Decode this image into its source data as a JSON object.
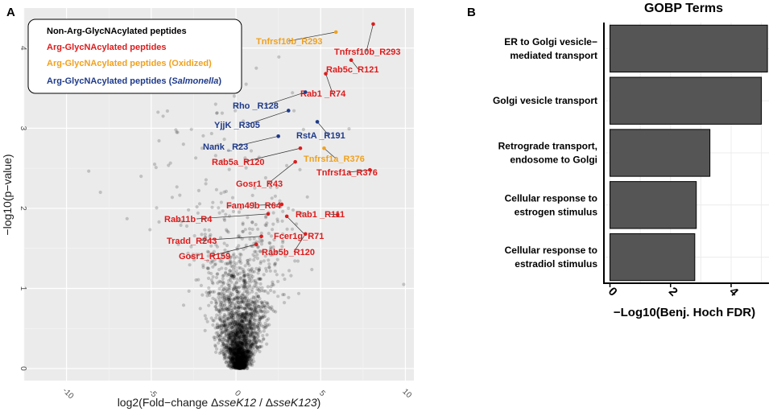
{
  "chart_data": [
    {
      "panel": "A",
      "type": "scatter",
      "xlabel_prefix": "log2(Fold−change Δ",
      "xlabel_italic_1": "sseK12",
      "xlabel_sep": " / Δ",
      "xlabel_italic_2": "sseK123",
      "xlabel_suffix": ")",
      "ylabel": "−log10(p−value)",
      "xlim": [
        -12.5,
        10.5
      ],
      "ylim": [
        -0.15,
        4.5
      ],
      "xticks": [
        -10,
        -5,
        0,
        5,
        10
      ],
      "yticks": [
        0,
        1,
        2,
        3,
        4
      ],
      "grid": true,
      "legend": [
        {
          "label": "Non-Arg-GlycNAcylated peptides",
          "color": "#000000"
        },
        {
          "label": "Arg-GlycNAcylated peptides",
          "color": "#dd1c1c"
        },
        {
          "label": "Arg-GlycNAcylated peptides (Oxidized)",
          "color": "#f0a11e"
        },
        {
          "label_prefix": "Arg-GlycNAcylated peptides (",
          "label_italic": "Salmonella",
          "label_suffix": ")",
          "color": "#1e3a8a"
        }
      ],
      "highlighted": [
        {
          "label": "Tnfrsf10b_R293",
          "x": 8.1,
          "y": 4.3,
          "group": "red"
        },
        {
          "label": "Tnfrsf10b_R293",
          "x": 5.9,
          "y": 4.2,
          "group": "orange"
        },
        {
          "label": "Rab5c_R121",
          "x": 6.8,
          "y": 3.85,
          "group": "red"
        },
        {
          "label": "Rab1 _R74",
          "x": 5.3,
          "y": 3.68,
          "group": "red"
        },
        {
          "label": "Rho _R128",
          "x": 4.1,
          "y": 3.45,
          "group": "blue"
        },
        {
          "label": "YjjK _R305",
          "x": 3.1,
          "y": 3.22,
          "group": "blue"
        },
        {
          "label": "RstA _R191",
          "x": 4.8,
          "y": 3.08,
          "group": "blue"
        },
        {
          "label": "Nank _R23",
          "x": 2.5,
          "y": 2.9,
          "group": "blue"
        },
        {
          "label": "Tnfrsf1a_R376",
          "x": 5.2,
          "y": 2.75,
          "group": "orange"
        },
        {
          "label": "Rab5a_R120",
          "x": 3.8,
          "y": 2.75,
          "group": "red"
        },
        {
          "label": "Gosr1_R43",
          "x": 3.5,
          "y": 2.58,
          "group": "red"
        },
        {
          "label": "Tnfrsf1a_R376",
          "x": 7.9,
          "y": 2.48,
          "group": "red"
        },
        {
          "label": "Fam49b_R64",
          "x": 2.7,
          "y": 2.05,
          "group": "red"
        },
        {
          "label": "Rab1 _R111",
          "x": 6.0,
          "y": 1.92,
          "group": "red"
        },
        {
          "label": "Rab11b_R4",
          "x": 1.9,
          "y": 1.93,
          "group": "red"
        },
        {
          "label": "Fcer1g_R71",
          "x": 3.0,
          "y": 1.9,
          "group": "red"
        },
        {
          "label": "Tradd_R243",
          "x": 1.5,
          "y": 1.65,
          "group": "red"
        },
        {
          "label": "Gosr1_R159",
          "x": 1.2,
          "y": 1.55,
          "group": "red"
        },
        {
          "label": "Rab5b_R120",
          "x": 4.1,
          "y": 1.68,
          "group": "red"
        }
      ]
    },
    {
      "panel": "B",
      "type": "bar",
      "orientation": "horizontal",
      "title": "GOBP Terms",
      "xlabel": "−Log10(Benj. Hoch FDR)",
      "xlim": [
        -0.2,
        5.25
      ],
      "xticks": [
        0,
        2,
        4
      ],
      "bar_color": "#555555",
      "categories": [
        [
          "ER to Golgi vesicle−",
          "mediated transport"
        ],
        [
          "Golgi vesicle  transport"
        ],
        [
          "Retrograde transport,",
          "endosome to Golgi"
        ],
        [
          "Cellular response to",
          "estrogen stimulus"
        ],
        [
          "Cellular response to",
          "estradiol stimulus"
        ]
      ],
      "values": [
        5.2,
        5.0,
        3.3,
        2.85,
        2.8
      ]
    }
  ],
  "colors": {
    "red": "#dd1c1c",
    "orange": "#f0a11e",
    "blue": "#1e3a8a",
    "panel_bg": "#ebebeb",
    "grid": "#ffffff"
  }
}
